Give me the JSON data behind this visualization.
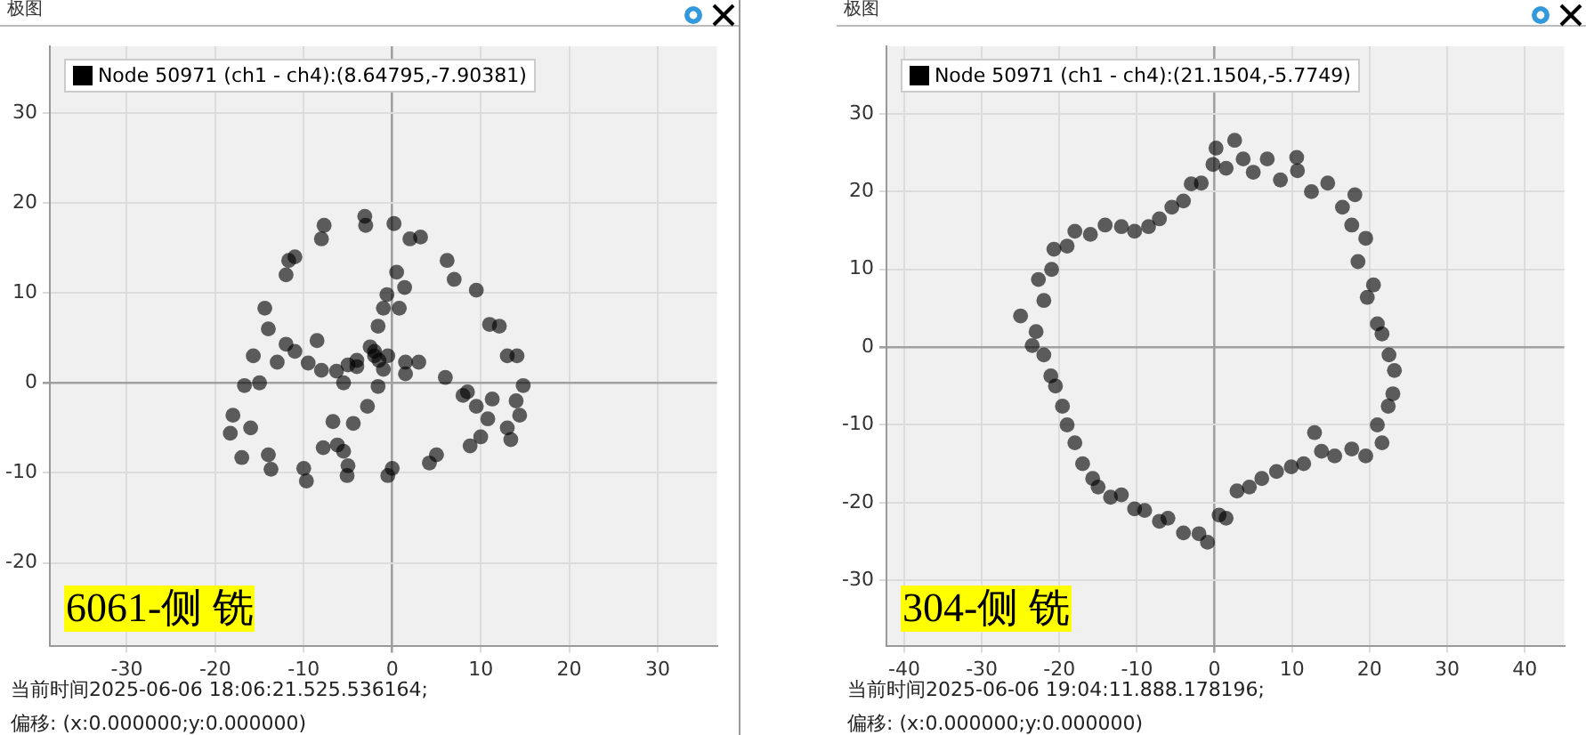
{
  "chart_data": [
    {
      "type": "scatter",
      "title": "极图",
      "series": [
        {
          "name": "Node 50971 (ch1 - ch4):(8.64795,-7.90381)",
          "color": "#000000",
          "x": [
            -3.1,
            -7.7,
            -11.7,
            -14.4,
            -15.7,
            -16.7,
            -18,
            -18.3,
            -17,
            -13.7,
            -9.7,
            -5.1,
            -0.5,
            4.2,
            8.8,
            13.4,
            14.4,
            14.8,
            14.1,
            12.1,
            9.5,
            6.2,
            3.2,
            0.2,
            -12,
            -14,
            -15,
            -16,
            -14,
            -10,
            -5,
            0,
            5,
            10,
            13,
            14,
            13,
            11,
            7,
            2,
            -3,
            -8,
            -11,
            0.5,
            1.4,
            -0.6,
            -1,
            0.8,
            -1.6,
            -12,
            -11,
            -8.5,
            -13,
            -9.5,
            -8,
            -6.3,
            -5,
            -4,
            -4,
            -2,
            -2,
            -1.5,
            -2.5,
            -1,
            -0.5,
            1.5,
            3,
            1.5,
            6,
            8,
            8.5,
            9.5,
            11.3,
            10.8,
            -5.5,
            -1.6,
            -2.8,
            -6.7,
            -4.4,
            -7.8,
            -6.2,
            -5.5
          ],
          "values": [
            18.5,
            17.5,
            13.6,
            8.3,
            3,
            -0.3,
            -3.6,
            -5.6,
            -8.3,
            -9.6,
            -10.9,
            -10.3,
            -10.3,
            -8.9,
            -7,
            -6.3,
            -3.6,
            -0.3,
            3,
            6.3,
            10.3,
            13.6,
            16.2,
            17.7,
            12,
            6,
            0,
            -5,
            -8,
            -9.5,
            -9.2,
            -9.5,
            -8,
            -6,
            -5,
            -2,
            3,
            6.5,
            11.5,
            16,
            17.5,
            16,
            14,
            12.3,
            10.6,
            9.8,
            8.3,
            8.3,
            6.3,
            4.3,
            3.5,
            4.7,
            2.3,
            2.2,
            1.4,
            1.3,
            2,
            2.5,
            1.8,
            3.5,
            3,
            2.5,
            4,
            1.5,
            3,
            2.3,
            2.3,
            1,
            0.6,
            -1.4,
            -1,
            -2.6,
            -1.8,
            -4,
            0,
            -0.4,
            -2.6,
            -4.3,
            -4.5,
            -7.2,
            -6.9,
            -7.6
          ]
        }
      ],
      "xlim": [
        -38.7,
        36.7
      ],
      "xticks": [
        -30,
        -20,
        -10,
        0,
        10,
        20,
        30
      ],
      "ylim": [
        -29.2,
        37.4
      ],
      "yticks": [
        -20,
        -10,
        0,
        10,
        20,
        30
      ],
      "grid": true,
      "legend": "top left",
      "marker": "circle",
      "annotations": [
        "6061-侧 铣",
        "当前时间2025-06-06 18:06:21.525.536164;",
        "偏移: (x:0.000000;y:0.000000)"
      ]
    },
    {
      "type": "scatter",
      "title": "极图",
      "series": [
        {
          "name": "Node 50971 (ch1 - ch4):(21.1504,-5.7749)",
          "color": "#000000",
          "x": [
            0.2,
            2.6,
            3.7,
            6.8,
            10.7,
            14.6,
            18.1,
            17.7,
            18.5,
            19.7,
            21.6,
            23.2,
            22.4,
            21.6,
            17.7,
            13.8,
            9.9,
            6.1,
            2.9,
            0.6,
            -0.9,
            -4,
            -7.1,
            -10.3,
            -13.4,
            -15.7,
            -18,
            -19.6,
            -21.1,
            -23.5,
            -25,
            -22.7,
            -20.7,
            -18,
            -14.1,
            -10.3,
            -7.1,
            -4,
            -1.7,
            -0.2,
            10.6,
            12.9,
            1.5,
            5,
            8.5,
            12.5,
            16.5,
            19.5,
            20.5,
            21,
            22.5,
            23,
            21,
            19.5,
            15.5,
            11.5,
            8,
            4.5,
            1.5,
            -2,
            -6,
            -9,
            -12,
            -15,
            -17,
            -19,
            -20.5,
            -22,
            -23,
            -22,
            -21,
            -19,
            -16,
            -12,
            -8.5,
            -5.5,
            -3
          ],
          "values": [
            25.6,
            26.6,
            24.2,
            24.2,
            22.7,
            21.1,
            19.6,
            15.7,
            11,
            6.4,
            1.7,
            -3,
            -7.6,
            -12.3,
            -13.1,
            -13.4,
            -15.4,
            -16.9,
            -18.5,
            -21.6,
            -25.1,
            -23.9,
            -22.4,
            -20.8,
            -19.3,
            -16.9,
            -12.3,
            -7.6,
            -3.7,
            0.2,
            4,
            8.7,
            12.6,
            14.9,
            15.7,
            14.9,
            16.5,
            18.8,
            21.1,
            23.5,
            24.4,
            -11,
            23,
            22.5,
            21.5,
            20,
            18,
            14,
            8,
            3,
            -1,
            -6,
            -10,
            -14,
            -14,
            -15,
            -16,
            -18,
            -22,
            -24,
            -22,
            -21,
            -19,
            -18,
            -15,
            -10,
            -5,
            -1,
            2,
            6,
            10,
            13,
            14.5,
            15.5,
            15.5,
            18,
            21
          ]
        }
      ],
      "xlim": [
        -42.3,
        45.1
      ],
      "xticks": [
        -40,
        -30,
        -20,
        -10,
        0,
        10,
        20,
        30,
        40
      ],
      "ylim": [
        -38.4,
        38.7
      ],
      "yticks": [
        -30,
        -20,
        -10,
        0,
        10,
        20,
        30
      ],
      "grid": true,
      "legend": "top left",
      "marker": "circle",
      "annotations": [
        "304-侧 铣",
        "当前时间2025-06-06 19:04:11.888.178196;",
        "偏移: (x:0.000000;y:0.000000)"
      ]
    }
  ]
}
